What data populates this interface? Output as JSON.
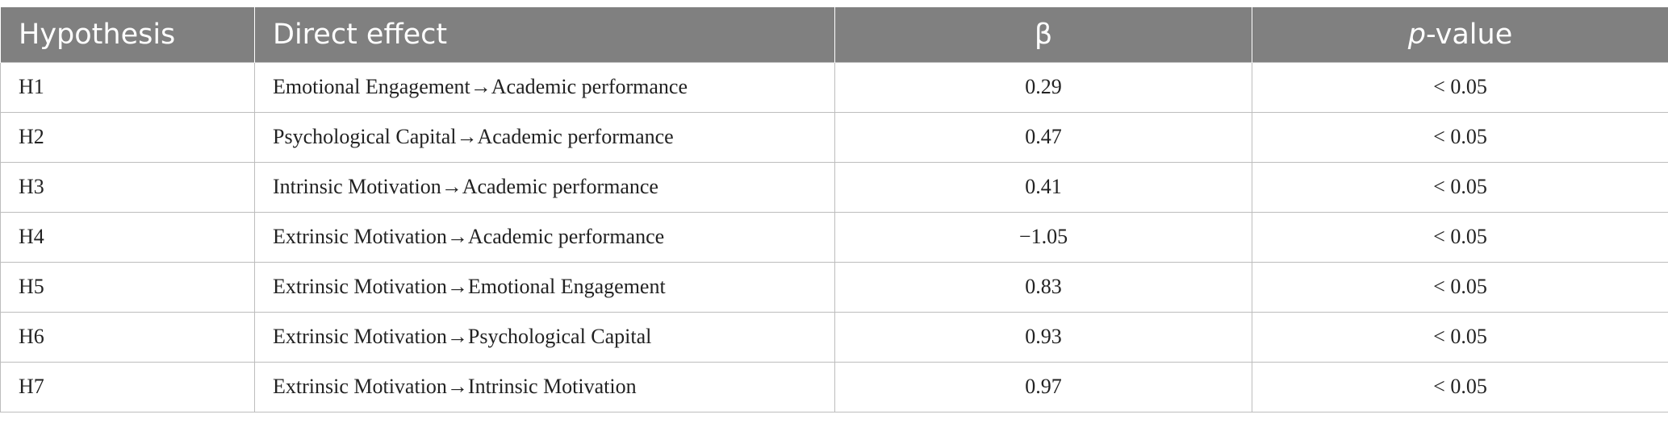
{
  "table": {
    "headers": {
      "hypothesis": "Hypothesis",
      "direct_effect": "Direct effect",
      "beta": "β",
      "p_value_italic": "p",
      "p_value_rest": "-value"
    },
    "rows": [
      {
        "hypothesis": "H1",
        "direct_effect": "Emotional Engagement→Academic performance",
        "beta": "0.29",
        "p_value": "< 0.05"
      },
      {
        "hypothesis": "H2",
        "direct_effect": "Psychological Capital→Academic performance",
        "beta": "0.47",
        "p_value": "< 0.05"
      },
      {
        "hypothesis": "H3",
        "direct_effect": "Intrinsic Motivation→Academic performance",
        "beta": "0.41",
        "p_value": "< 0.05"
      },
      {
        "hypothesis": "H4",
        "direct_effect": "Extrinsic Motivation→Academic performance",
        "beta": "−1.05",
        "p_value": "< 0.05"
      },
      {
        "hypothesis": "H5",
        "direct_effect": "Extrinsic Motivation→Emotional Engagement",
        "beta": "0.83",
        "p_value": "< 0.05"
      },
      {
        "hypothesis": "H6",
        "direct_effect": "Extrinsic Motivation→Psychological Capital",
        "beta": "0.93",
        "p_value": "< 0.05"
      },
      {
        "hypothesis": "H7",
        "direct_effect": "Extrinsic Motivation→Intrinsic Motivation",
        "beta": "0.97",
        "p_value": "< 0.05"
      }
    ]
  },
  "colors": {
    "header_background": "#808080",
    "header_text": "#ffffff",
    "grid_line": "#bdbdbd",
    "body_text": "#222222"
  }
}
